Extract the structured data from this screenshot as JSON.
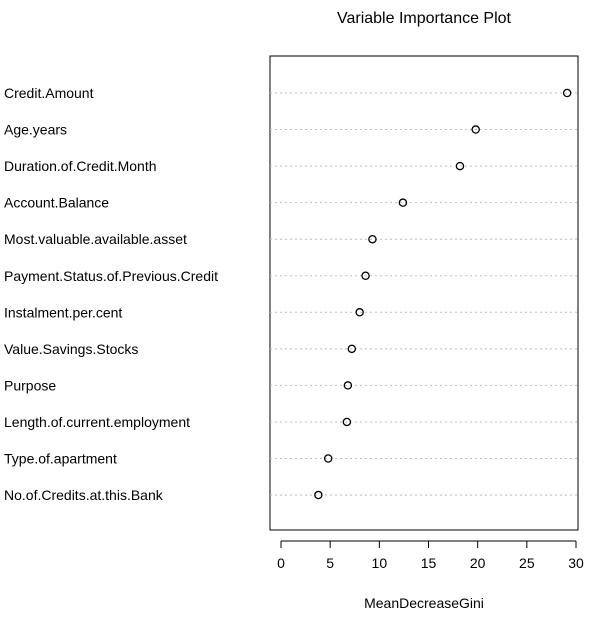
{
  "chart_data": {
    "type": "scatter",
    "title": "Variable Importance Plot",
    "xlabel": "MeanDecreaseGini",
    "ylabel": "",
    "xlim": [
      0,
      30
    ],
    "xticks": [
      "0",
      "5",
      "10",
      "15",
      "20",
      "25",
      "30"
    ],
    "grid": "horizontal dotted",
    "points": [
      {
        "label": "Credit.Amount",
        "value": 29.1
      },
      {
        "label": "Age.years",
        "value": 19.8
      },
      {
        "label": "Duration.of.Credit.Month",
        "value": 18.2
      },
      {
        "label": "Account.Balance",
        "value": 12.4
      },
      {
        "label": "Most.valuable.available.asset",
        "value": 9.3
      },
      {
        "label": "Payment.Status.of.Previous.Credit",
        "value": 8.6
      },
      {
        "label": "Instalment.per.cent",
        "value": 8.0
      },
      {
        "label": "Value.Savings.Stocks",
        "value": 7.2
      },
      {
        "label": "Purpose",
        "value": 6.8
      },
      {
        "label": "Length.of.current.employment",
        "value": 6.7
      },
      {
        "label": "Type.of.apartment",
        "value": 4.8
      },
      {
        "label": "No.of.Credits.at.this.Bank",
        "value": 3.8
      }
    ]
  }
}
